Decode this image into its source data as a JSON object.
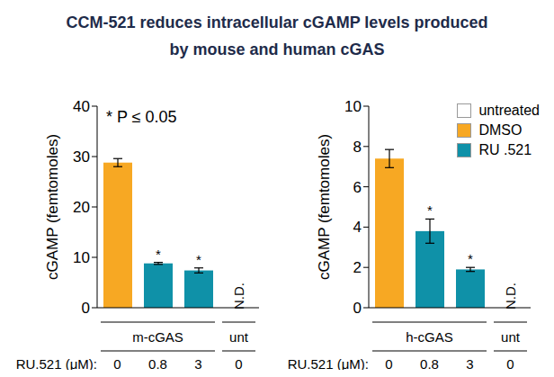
{
  "title": "CCM-521 reduces intracellular cGAMP levels produced\nby mouse and human cGAS",
  "chart_data": [
    {
      "type": "bar",
      "y_label": "cGAMP (femtomoles)",
      "x_label": "RU.521 (μM):",
      "note": "* P ≤ 0.05",
      "categories": [
        "0",
        "0.8",
        "3",
        "0"
      ],
      "groups": [
        {
          "label": "m-cGAS",
          "start": 0,
          "end": 2
        },
        {
          "label": "unt",
          "start": 3,
          "end": 3
        }
      ],
      "series": [
        {
          "name": "untreated",
          "color": "#ffffff",
          "values": [
            null,
            null,
            null,
            null
          ],
          "errors": [
            null,
            null,
            null,
            null
          ]
        },
        {
          "name": "DMSO",
          "color": "#f7a823",
          "values": [
            28.8,
            null,
            null,
            null
          ],
          "errors": [
            0.8,
            null,
            null,
            null
          ]
        },
        {
          "name": "RU .521",
          "color": "#0f91a8",
          "values": [
            null,
            8.8,
            7.4,
            null
          ],
          "errors": [
            null,
            0.2,
            0.5,
            null
          ]
        }
      ],
      "annotations": [
        null,
        "*",
        "*",
        "N.D."
      ],
      "ylim": [
        0,
        40
      ],
      "yticks": [
        0,
        10,
        20,
        30,
        40
      ]
    },
    {
      "type": "bar",
      "y_label": "cGAMP (femtomoles)",
      "x_label": "RU.521 (μM):",
      "categories": [
        "0",
        "0.8",
        "3",
        "0"
      ],
      "groups": [
        {
          "label": "h-cGAS",
          "start": 0,
          "end": 2
        },
        {
          "label": "unt",
          "start": 3,
          "end": 3
        }
      ],
      "series": [
        {
          "name": "untreated",
          "color": "#ffffff",
          "values": [
            null,
            null,
            null,
            null
          ],
          "errors": [
            null,
            null,
            null,
            null
          ]
        },
        {
          "name": "DMSO",
          "color": "#f7a823",
          "values": [
            7.4,
            null,
            null,
            null
          ],
          "errors": [
            0.45,
            null,
            null,
            null
          ]
        },
        {
          "name": "RU .521",
          "color": "#0f91a8",
          "values": [
            null,
            3.8,
            1.9,
            null
          ],
          "errors": [
            null,
            0.6,
            0.1,
            null
          ]
        }
      ],
      "annotations": [
        null,
        "*",
        "*",
        "N.D."
      ],
      "ylim": [
        0,
        10
      ],
      "yticks": [
        0,
        2,
        4,
        6,
        8,
        10
      ],
      "legend": "upper right"
    }
  ]
}
